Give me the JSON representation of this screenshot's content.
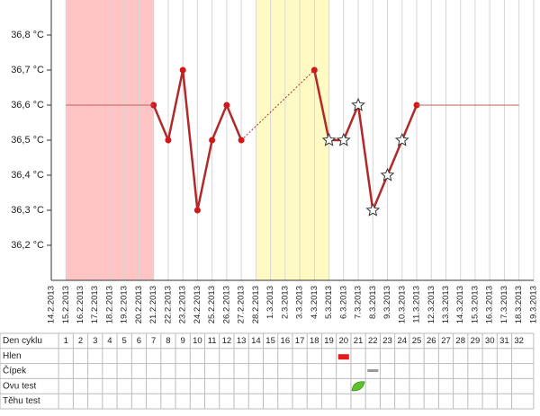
{
  "chart_data": {
    "type": "line",
    "x": [
      "14.2.2013",
      "15.2.2013",
      "16.2.2013",
      "17.2.2013",
      "18.2.2013",
      "19.2.2013",
      "20.2.2013",
      "21.2.2013",
      "22.2.2013",
      "23.2.2013",
      "24.2.2013",
      "25.2.2013",
      "26.2.2013",
      "27.2.2013",
      "28.2.2013",
      "1.3.2013",
      "2.3.2013",
      "3.3.2013",
      "4.3.2013",
      "5.3.2013",
      "6.3.2013",
      "7.3.2013",
      "8.3.2013",
      "9.3.2013",
      "10.3.2013",
      "11.3.2013",
      "12.3.2013",
      "13.3.2013",
      "14.3.2013",
      "15.3.2013",
      "16.3.2013",
      "17.3.2013",
      "18.3.2013",
      "19.3.2013"
    ],
    "series": [
      {
        "color": "#b02a2a",
        "gaps": "dotted",
        "values": [
          null,
          null,
          null,
          null,
          null,
          null,
          null,
          36.6,
          36.5,
          36.7,
          36.3,
          36.5,
          36.6,
          36.5,
          null,
          null,
          null,
          null,
          36.7,
          36.5,
          36.5,
          36.6,
          36.3,
          36.4,
          36.5,
          36.6,
          null,
          null,
          null,
          null,
          null,
          null,
          null,
          null
        ],
        "markers": [
          null,
          null,
          null,
          null,
          null,
          null,
          null,
          "dot",
          "dot",
          "dot",
          "dot",
          "dot",
          "dot",
          "dot",
          null,
          null,
          null,
          null,
          "dot",
          "star",
          "star",
          "star",
          "star",
          "star",
          "star",
          "dot",
          null,
          null,
          null,
          null,
          null,
          null,
          null,
          null
        ]
      },
      {
        "color": "#c06060",
        "values": [
          null,
          36.6,
          36.6,
          36.6,
          36.6,
          36.6,
          36.6,
          36.6,
          null,
          null,
          null,
          null,
          null,
          null,
          null,
          null,
          null,
          null,
          null,
          null,
          null,
          null,
          null,
          null,
          null,
          36.6,
          36.6,
          36.6,
          36.6,
          36.6,
          36.6,
          36.6,
          36.6,
          null
        ]
      }
    ],
    "bands": [
      {
        "from": 1,
        "to": 7,
        "color": "#ffc4c4"
      },
      {
        "from": 14,
        "to": 19,
        "color": "#fffac4"
      }
    ],
    "ylim": [
      36.1,
      36.9
    ],
    "yticks": [
      {
        "value": 36.2,
        "label": "36,2 °C"
      },
      {
        "value": 36.3,
        "label": "36,3 °C"
      },
      {
        "value": 36.4,
        "label": "36,4 °C"
      },
      {
        "value": 36.5,
        "label": "36,5 °C"
      },
      {
        "value": 36.6,
        "label": "36,6 °C"
      },
      {
        "value": 36.7,
        "label": "36,7 °C"
      },
      {
        "value": 36.8,
        "label": "36,8 °C"
      }
    ]
  },
  "table": {
    "header": "Den cyklu",
    "days": [
      1,
      2,
      3,
      4,
      5,
      6,
      7,
      8,
      9,
      10,
      11,
      12,
      13,
      14,
      15,
      16,
      17,
      18,
      19,
      20,
      21,
      22,
      23,
      24,
      25,
      26,
      27,
      28,
      29,
      30,
      31,
      32
    ],
    "rows": [
      {
        "label": "Hlen",
        "entries": [
          {
            "day": 20,
            "color": "#e41b1b"
          }
        ]
      },
      {
        "label": "Čípek",
        "entries": [
          {
            "day": 22,
            "color": "#999999"
          }
        ]
      },
      {
        "label": "Ovu test",
        "entries": [
          {
            "day": 21,
            "color": "#5cc42a"
          }
        ]
      },
      {
        "label": "Těhu test",
        "entries": []
      }
    ]
  }
}
